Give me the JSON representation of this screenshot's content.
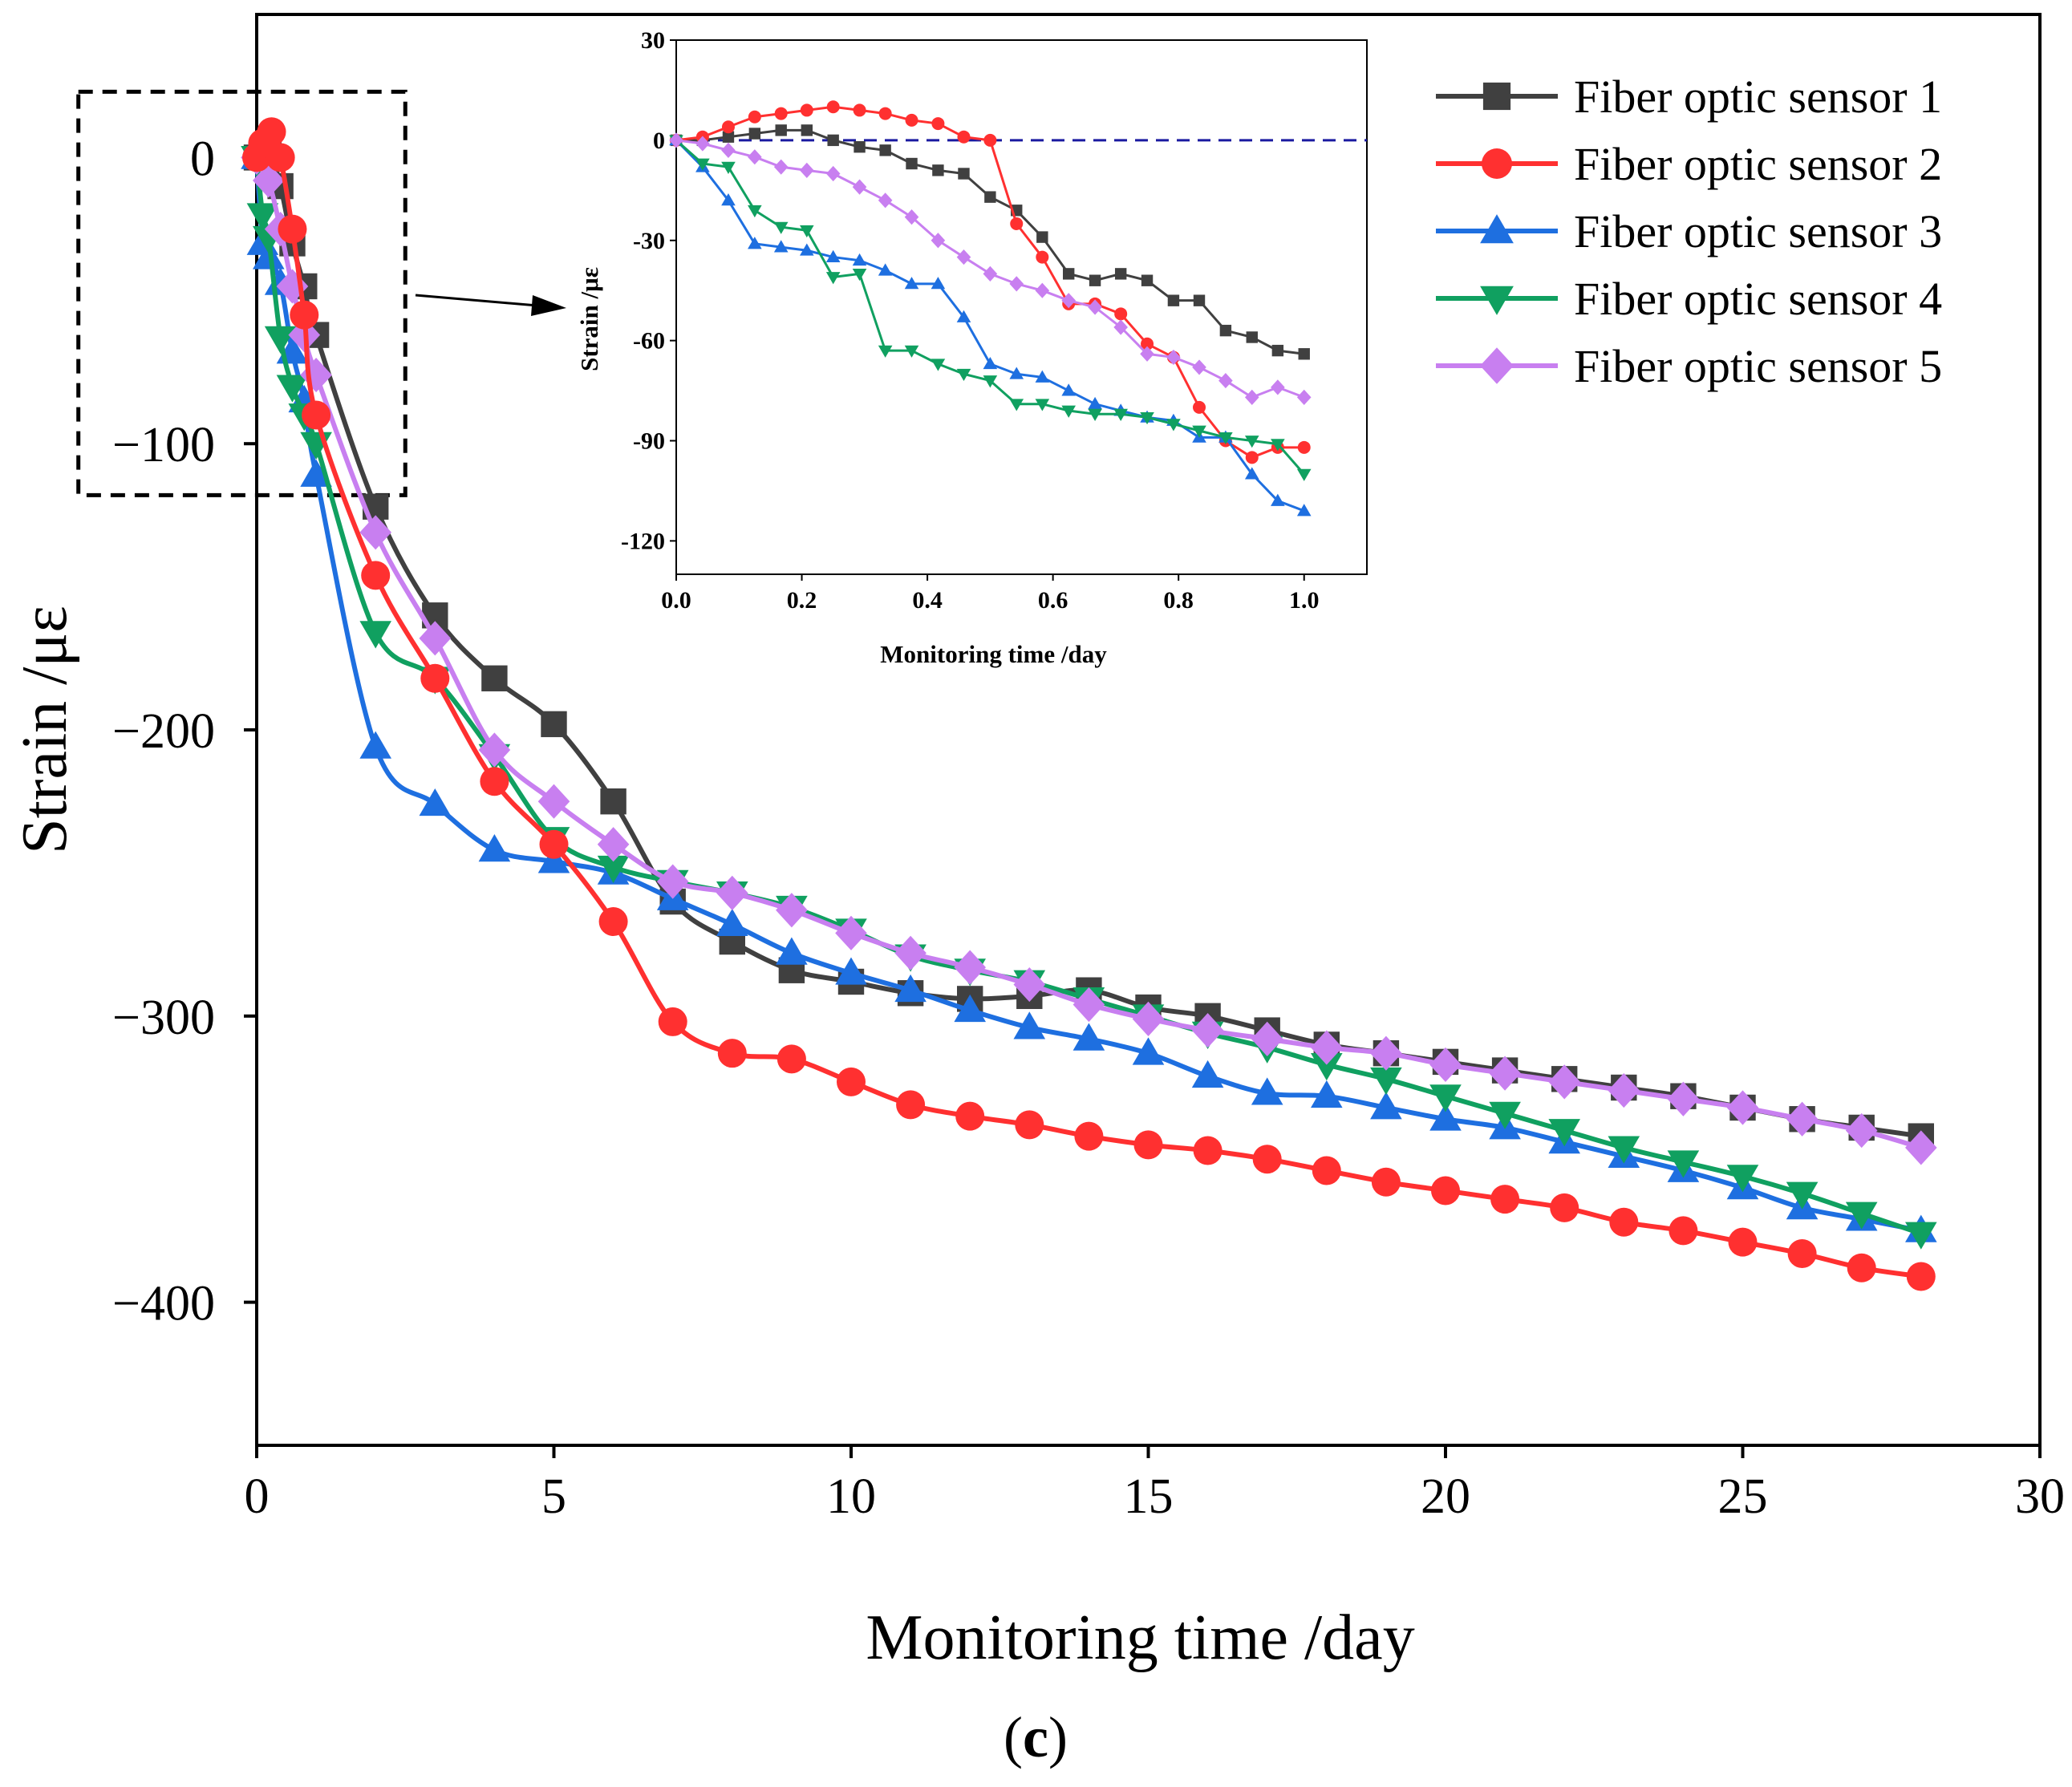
{
  "panel_label": {
    "open": "(",
    "letter": "c",
    "close": ")"
  },
  "chart_data": [
    {
      "id": "main",
      "type": "line",
      "xlabel": "Monitoring time /day",
      "ylabel": "Strain /με",
      "xlim": [
        0,
        30
      ],
      "ylim": [
        -450,
        50
      ],
      "xticks": [
        0,
        5,
        10,
        15,
        20,
        25,
        30
      ],
      "yticks": [
        0,
        -100,
        -200,
        -300,
        -400
      ],
      "ytick_labels": [
        "0",
        "−100",
        "−200",
        "−300",
        "−400"
      ],
      "grid": false,
      "legend_position": "top-right",
      "zoom_box": {
        "x_range": [
          -3,
          2.5
        ],
        "y_range": [
          -118,
          23
        ]
      },
      "series": [
        {
          "name": "Fiber optic sensor 1",
          "color": "#404040",
          "marker": "square",
          "x": [
            0,
            0.2,
            0.4,
            0.6,
            0.8,
            1,
            2,
            3,
            4,
            5,
            6,
            7,
            8,
            9,
            10,
            11,
            12,
            13,
            14,
            15,
            16,
            17,
            18,
            19,
            20,
            21,
            22,
            23,
            24,
            25,
            26,
            27,
            28
          ],
          "y": [
            0,
            3,
            -10,
            -30,
            -45,
            -62,
            -122,
            -160,
            -182,
            -198,
            -225,
            -260,
            -274,
            -284,
            -288,
            -292,
            -294,
            -293,
            -291,
            -297,
            -300,
            -305,
            -310,
            -313,
            -316,
            -319,
            -322,
            -325,
            -328,
            -332,
            -336,
            -339,
            -342
          ]
        },
        {
          "name": "Fiber optic sensor 2",
          "color": "#ff3030",
          "marker": "circle",
          "x": [
            0,
            0.1,
            0.25,
            0.4,
            0.6,
            0.8,
            1,
            2,
            3,
            4,
            5,
            6,
            7,
            8,
            9,
            10,
            11,
            12,
            13,
            14,
            15,
            16,
            17,
            18,
            19,
            20,
            21,
            22,
            23,
            24,
            25,
            26,
            27,
            28
          ],
          "y": [
            0,
            5,
            9,
            0,
            -25,
            -55,
            -90,
            -146,
            -182,
            -218,
            -240,
            -267,
            -302,
            -313,
            -315,
            -323,
            -331,
            -335,
            -338,
            -342,
            -345,
            -347,
            -350,
            -354,
            -358,
            -361,
            -364,
            -367,
            -372,
            -375,
            -379,
            -383,
            -388,
            -391
          ]
        },
        {
          "name": "Fiber optic sensor 3",
          "color": "#1e6fe0",
          "marker": "triangle-up",
          "x": [
            0,
            0.1,
            0.2,
            0.4,
            0.6,
            0.8,
            1,
            2,
            3,
            4,
            5,
            6,
            7,
            8,
            9,
            10,
            11,
            12,
            13,
            14,
            15,
            16,
            17,
            18,
            19,
            20,
            21,
            22,
            23,
            24,
            25,
            26,
            27,
            28
          ],
          "y": [
            0,
            -30,
            -35,
            -44,
            -68,
            -85,
            -111,
            -206,
            -226,
            -242,
            -246,
            -250,
            -259,
            -268,
            -278,
            -285,
            -291,
            -298,
            -304,
            -308,
            -313,
            -321,
            -327,
            -328,
            -332,
            -336,
            -339,
            -344,
            -349,
            -354,
            -360,
            -367,
            -371,
            -375
          ]
        },
        {
          "name": "Fiber optic sensor 4",
          "color": "#10a060",
          "marker": "triangle-down",
          "x": [
            0,
            0.1,
            0.2,
            0.4,
            0.6,
            0.8,
            1,
            2,
            3,
            4,
            5,
            6,
            7,
            8,
            9,
            10,
            11,
            12,
            13,
            14,
            15,
            16,
            17,
            18,
            19,
            20,
            21,
            22,
            23,
            24,
            25,
            26,
            27,
            28
          ],
          "y": [
            0,
            -20,
            -28,
            -63,
            -80,
            -90,
            -100,
            -166,
            -182,
            -209,
            -238,
            -248,
            -253,
            -257,
            -262,
            -270,
            -279,
            -284,
            -288,
            -294,
            -300,
            -306,
            -311,
            -317,
            -322,
            -328,
            -334,
            -340,
            -346,
            -351,
            -356,
            -362,
            -369,
            -376
          ]
        },
        {
          "name": "Fiber optic sensor 5",
          "color": "#c87ff0",
          "marker": "diamond",
          "x": [
            0,
            0.2,
            0.4,
            0.6,
            0.8,
            1,
            2,
            3,
            4,
            5,
            6,
            7,
            8,
            9,
            10,
            11,
            12,
            13,
            14,
            15,
            16,
            17,
            18,
            19,
            20,
            21,
            22,
            23,
            24,
            25,
            26,
            27,
            28
          ],
          "y": [
            0,
            -8,
            -25,
            -45,
            -62,
            -76,
            -131,
            -168,
            -207,
            -225,
            -240,
            -253,
            -257,
            -263,
            -271,
            -278,
            -283,
            -289,
            -296,
            -301,
            -305,
            -308,
            -311,
            -313,
            -317,
            -320,
            -323,
            -326,
            -329,
            -332,
            -336,
            -340,
            -346
          ]
        }
      ]
    },
    {
      "id": "inset",
      "type": "line",
      "xlabel": "Monitoring time /day",
      "ylabel": "Strain /με",
      "xlim": [
        0,
        1.1
      ],
      "ylim": [
        -130,
        30
      ],
      "xticks": [
        0,
        0.2,
        0.4,
        0.6,
        0.8,
        1.0
      ],
      "xtick_labels": [
        "0.0",
        "0.2",
        "0.4",
        "0.6",
        "0.8",
        "1.0"
      ],
      "yticks": [
        30,
        0,
        -30,
        -60,
        -90,
        -120
      ],
      "ytick_labels": [
        "30",
        "0",
        "-30",
        "-60",
        "-90",
        "-120"
      ],
      "reference_line": {
        "y": 0,
        "style": "dashed",
        "color": "#1a1aa0"
      },
      "series": [
        {
          "name": "Fiber optic sensor 1",
          "color": "#404040",
          "marker": "square",
          "x": [
            0,
            0.042,
            0.083,
            0.125,
            0.167,
            0.208,
            0.25,
            0.292,
            0.333,
            0.375,
            0.417,
            0.458,
            0.5,
            0.542,
            0.583,
            0.625,
            0.667,
            0.708,
            0.75,
            0.792,
            0.833,
            0.875,
            0.917,
            0.958,
            1.0
          ],
          "y": [
            0,
            0,
            1,
            2,
            3,
            3,
            0,
            -2,
            -3,
            -7,
            -9,
            -10,
            -17,
            -21,
            -29,
            -40,
            -42,
            -40,
            -42,
            -48,
            -48,
            -57,
            -59,
            -63,
            -64
          ]
        },
        {
          "name": "Fiber optic sensor 2",
          "color": "#ff3030",
          "marker": "circle",
          "x": [
            0,
            0.042,
            0.083,
            0.125,
            0.167,
            0.208,
            0.25,
            0.292,
            0.333,
            0.375,
            0.417,
            0.458,
            0.5,
            0.542,
            0.583,
            0.625,
            0.667,
            0.708,
            0.75,
            0.792,
            0.833,
            0.875,
            0.917,
            0.958,
            1.0
          ],
          "y": [
            0,
            1,
            4,
            7,
            8,
            9,
            10,
            9,
            8,
            6,
            5,
            1,
            0,
            -25,
            -35,
            -49,
            -49,
            -52,
            -61,
            -65,
            -80,
            -90,
            -95,
            -92,
            -92
          ]
        },
        {
          "name": "Fiber optic sensor 3",
          "color": "#1e6fe0",
          "marker": "triangle-up",
          "x": [
            0,
            0.042,
            0.083,
            0.125,
            0.167,
            0.208,
            0.25,
            0.292,
            0.333,
            0.375,
            0.417,
            0.458,
            0.5,
            0.542,
            0.583,
            0.625,
            0.667,
            0.708,
            0.75,
            0.792,
            0.833,
            0.875,
            0.917,
            0.958,
            1.0
          ],
          "y": [
            0,
            -8,
            -18,
            -31,
            -32,
            -33,
            -35,
            -36,
            -39,
            -43,
            -43,
            -53,
            -67,
            -70,
            -71,
            -75,
            -79,
            -81,
            -83,
            -84,
            -89,
            -89,
            -100,
            -108,
            -111
          ]
        },
        {
          "name": "Fiber optic sensor 4",
          "color": "#10a060",
          "marker": "triangle-down",
          "x": [
            0,
            0.042,
            0.083,
            0.125,
            0.167,
            0.208,
            0.25,
            0.292,
            0.333,
            0.375,
            0.417,
            0.458,
            0.5,
            0.542,
            0.583,
            0.625,
            0.667,
            0.708,
            0.75,
            0.792,
            0.833,
            0.875,
            0.917,
            0.958,
            1.0
          ],
          "y": [
            0,
            -7,
            -8,
            -21,
            -26,
            -27,
            -41,
            -40,
            -63,
            -63,
            -67,
            -70,
            -72,
            -79,
            -79,
            -81,
            -82,
            -82,
            -83,
            -85,
            -87,
            -89,
            -90,
            -91,
            -100
          ]
        },
        {
          "name": "Fiber optic sensor 5",
          "color": "#c87ff0",
          "marker": "diamond",
          "x": [
            0,
            0.042,
            0.083,
            0.125,
            0.167,
            0.208,
            0.25,
            0.292,
            0.333,
            0.375,
            0.417,
            0.458,
            0.5,
            0.542,
            0.583,
            0.625,
            0.667,
            0.708,
            0.75,
            0.792,
            0.833,
            0.875,
            0.917,
            0.958,
            1.0
          ],
          "y": [
            0,
            -1,
            -3,
            -5,
            -8,
            -9,
            -10,
            -14,
            -18,
            -23,
            -30,
            -35,
            -40,
            -43,
            -45,
            -48,
            -50,
            -56,
            -64,
            -65,
            -68,
            -72,
            -77,
            -74,
            -77
          ]
        }
      ]
    }
  ]
}
